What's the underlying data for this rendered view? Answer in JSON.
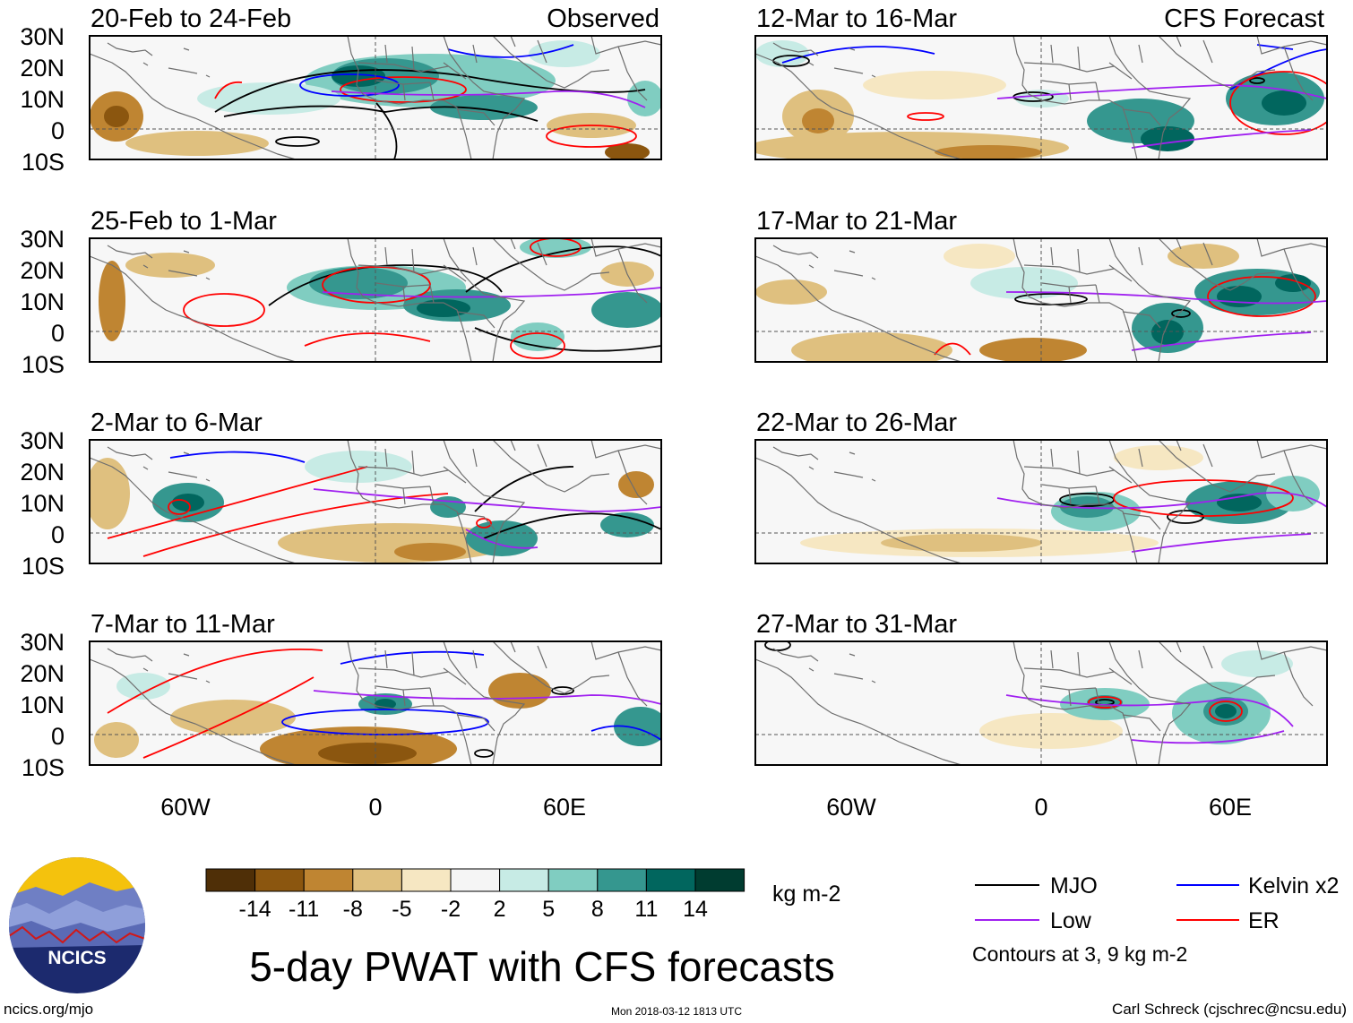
{
  "panels": {
    "left_header": "Observed",
    "right_header": "CFS Forecast",
    "observed": [
      {
        "label": "20-Feb to 24-Feb"
      },
      {
        "label": "25-Feb to 1-Mar"
      },
      {
        "label": "2-Mar to 6-Mar"
      },
      {
        "label": "7-Mar to 11-Mar"
      }
    ],
    "forecast": [
      {
        "label": "12-Mar to 16-Mar"
      },
      {
        "label": "17-Mar to 21-Mar"
      },
      {
        "label": "22-Mar to 26-Mar"
      },
      {
        "label": "27-Mar to 31-Mar"
      }
    ]
  },
  "axes": {
    "lat_labels": [
      "30N",
      "20N",
      "10N",
      "0",
      "10S"
    ],
    "lon_labels": [
      "60W",
      "0",
      "60E"
    ]
  },
  "colorbar": {
    "tick_labels": [
      "-14",
      "-11",
      "-8",
      "-5",
      "-2",
      "2",
      "5",
      "8",
      "11",
      "14"
    ],
    "colors": [
      "#4f2f07",
      "#8b560f",
      "#bf8532",
      "#dfc07f",
      "#f6e7c2",
      "#f5f5f5",
      "#c7ebe5",
      "#80cdc1",
      "#35978f",
      "#01665e",
      "#003c30"
    ],
    "units": "kg m-2"
  },
  "legend": {
    "items": [
      {
        "label": "MJO",
        "color": "#000000"
      },
      {
        "label": "Kelvin x2",
        "color": "#0000ff"
      },
      {
        "label": "Low",
        "color": "#a020f0"
      },
      {
        "label": "ER",
        "color": "#ff0000"
      }
    ],
    "note": "Contours at 3, 9 kg m-2"
  },
  "logo": {
    "text": "NCICS"
  },
  "title": "5-day PWAT with CFS forecasts",
  "footer": {
    "left": "ncics.org/mjo",
    "center": "Mon 2018-03-12 1813 UTC",
    "right": "Carl Schreck (cjschrec@ncsu.edu)"
  }
}
